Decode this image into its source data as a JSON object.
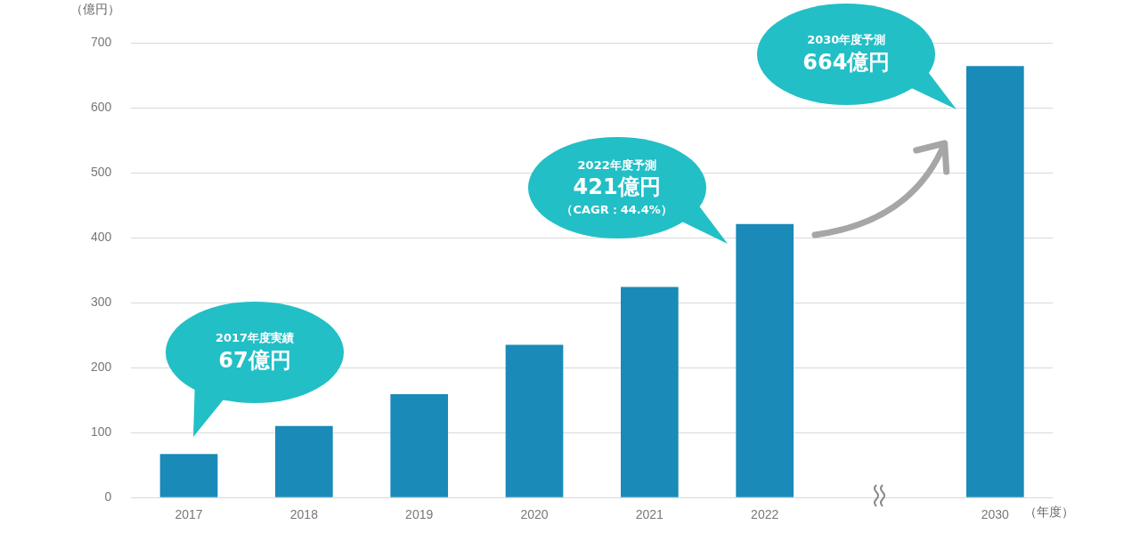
{
  "chart_data": {
    "type": "bar",
    "ylabel": "（億円）",
    "xlabel": "（年度）",
    "categories": [
      "2017",
      "2018",
      "2019",
      "2020",
      "2021",
      "2022",
      null,
      "2030"
    ],
    "values": [
      67,
      110,
      159,
      235,
      324,
      421,
      null,
      664
    ],
    "color": "#1a8ab8",
    "ylim": [
      0,
      700
    ],
    "yticks": [
      0,
      100,
      200,
      300,
      400,
      500,
      600,
      700
    ],
    "grid": "y",
    "annotations": [
      "2017年度実績",
      "67億円",
      "2022年度予測",
      "421億円",
      "（CAGR：44.4%）",
      "2030年度予測",
      "664億円"
    ]
  }
}
